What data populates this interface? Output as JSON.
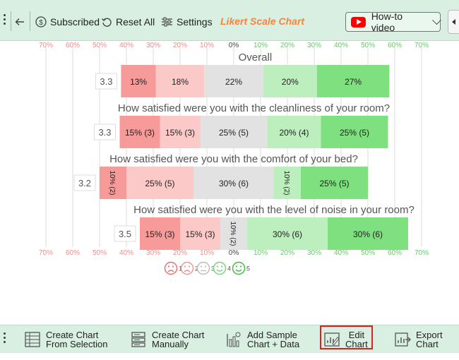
{
  "toolbar": {
    "subscribed": "Subscribed",
    "reset": "Reset All",
    "settings": "Settings",
    "title": "Likert Scale Chart",
    "howto": "How-to video"
  },
  "chart_data": {
    "type": "bar",
    "orientation": "horizontal-diverging",
    "axis_ticks": [
      "70%",
      "60%",
      "50%",
      "40%",
      "30%",
      "20%",
      "10%",
      "0%",
      "10%",
      "20%",
      "30%",
      "40%",
      "50%",
      "60%",
      "70%"
    ],
    "scale_labels": [
      "1",
      "2",
      "3",
      "4",
      "5"
    ],
    "colors": [
      "#f79a9a",
      "#fcc9c9",
      "#e2e2e2",
      "#bdeebd",
      "#7ee07e"
    ],
    "negative_tick_color": "#f08a8a",
    "positive_tick_color": "#62c962",
    "grid": true,
    "legend_position": "bottom",
    "questions": [
      {
        "title": "Overall",
        "average": "3.3",
        "values": [
          13,
          18,
          22,
          20,
          27
        ],
        "labels": [
          "13%",
          "18%",
          "22%",
          "20%",
          "27%"
        ],
        "rotated": [
          false,
          false,
          false,
          false,
          false
        ]
      },
      {
        "title": "How satisfied were you with the cleanliness of your room?",
        "average": "3.3",
        "values": [
          15,
          15,
          25,
          20,
          25
        ],
        "labels": [
          "15% (3)",
          "15% (3)",
          "25% (5)",
          "20% (4)",
          "25% (5)"
        ],
        "rotated": [
          false,
          false,
          false,
          false,
          false
        ]
      },
      {
        "title": "How satisfied were you with the comfort of your bed?",
        "average": "3.2",
        "values": [
          10,
          25,
          30,
          10,
          25
        ],
        "labels": [
          "10% (2)",
          "25% (5)",
          "30% (6)",
          "10% (2)",
          "25% (5)"
        ],
        "rotated": [
          true,
          false,
          false,
          true,
          false
        ]
      },
      {
        "title": "How satisfied were you with the level of noise in your room?",
        "average": "3.5",
        "values": [
          15,
          15,
          10,
          30,
          30
        ],
        "labels": [
          "15% (3)",
          "15% (3)",
          "10% (2)",
          "30% (6)",
          "30% (6)"
        ],
        "rotated": [
          false,
          false,
          true,
          false,
          false
        ]
      }
    ]
  },
  "bottom": {
    "create_selection": [
      "Create Chart",
      "From Selection"
    ],
    "create_manual": [
      "Create Chart",
      "Manually"
    ],
    "add_sample": [
      "Add Sample",
      "Chart + Data"
    ],
    "edit": [
      "Edit",
      "Chart"
    ],
    "export": [
      "Export",
      "Chart"
    ]
  }
}
